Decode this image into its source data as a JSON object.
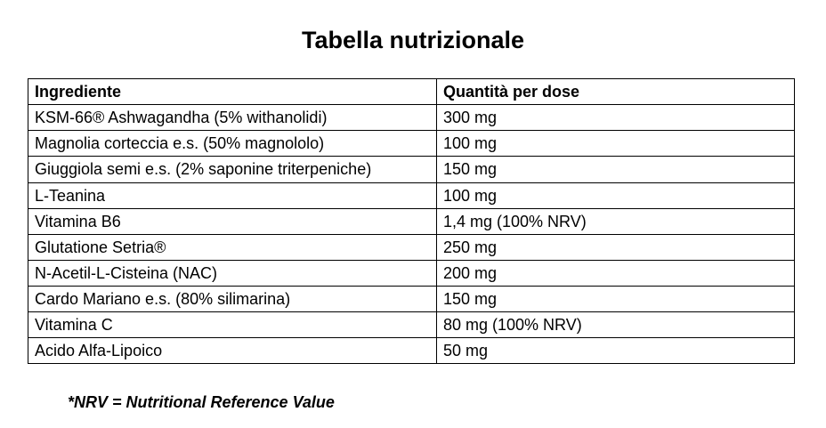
{
  "title": "Tabella nutrizionale",
  "table": {
    "headers": [
      "Ingrediente",
      "Quantità per dose"
    ],
    "rows": [
      [
        "KSM-66® Ashwagandha (5% withanolidi)",
        "300 mg"
      ],
      [
        "Magnolia corteccia e.s. (50% magnololo)",
        "100 mg"
      ],
      [
        "Giuggiola semi e.s. (2% saponine triterpeniche)",
        "150 mg"
      ],
      [
        "L-Teanina",
        "100 mg"
      ],
      [
        "Vitamina B6",
        "1,4 mg (100% NRV)"
      ],
      [
        "Glutatione Setria®",
        "250 mg"
      ],
      [
        "N-Acetil-L-Cisteina (NAC)",
        "200 mg"
      ],
      [
        "Cardo Mariano e.s. (80% silimarina)",
        "150 mg"
      ],
      [
        "Vitamina C",
        "80 mg (100% NRV)"
      ],
      [
        "Acido Alfa-Lipoico",
        "50 mg"
      ]
    ]
  },
  "footnote": "*NRV = Nutritional Reference Value"
}
